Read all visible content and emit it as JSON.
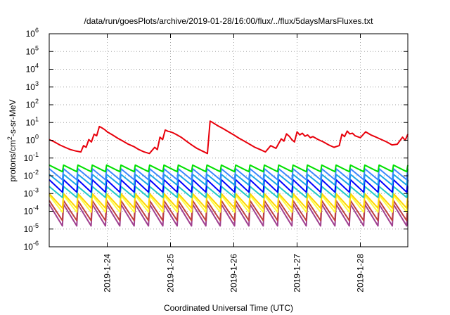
{
  "chart_data": {
    "type": "line",
    "title": "/data/run/goesPlots/archive/2019-01-28/16:00/flux/../flux/5daysMarsFluxes.txt",
    "xlabel": "Coordinated Universal Time (UTC)",
    "ylabel_prefix": "protons/cm",
    "ylabel_sup": "2",
    "ylabel_suffix": "-s-sr-MeV",
    "y_scale": "log",
    "ylim": [
      1e-06,
      1000000.0
    ],
    "xlim": [
      "2019-01-23T02:00",
      "2019-01-28T18:00"
    ],
    "grid": true,
    "x_ticks": [
      "2019-1-24",
      "2019-1-25",
      "2019-1-26",
      "2019-1-27",
      "2019-1-28"
    ],
    "y_ticks": [
      {
        "base": "10",
        "exp": "-6"
      },
      {
        "base": "10",
        "exp": "-5"
      },
      {
        "base": "10",
        "exp": "-4"
      },
      {
        "base": "10",
        "exp": "-3"
      },
      {
        "base": "10",
        "exp": "-2"
      },
      {
        "base": "10",
        "exp": "-1"
      },
      {
        "base": "10",
        "exp": "0"
      },
      {
        "base": "10",
        "exp": "1"
      },
      {
        "base": "10",
        "exp": "2"
      },
      {
        "base": "10",
        "exp": "3"
      },
      {
        "base": "10",
        "exp": "4"
      },
      {
        "base": "10",
        "exp": "5"
      },
      {
        "base": "10",
        "exp": "6"
      }
    ],
    "series": [
      {
        "color": "#e8000b",
        "x": [
          "2019-01-23T02:00",
          "2019-01-23T04:00",
          "2019-01-23T06:00",
          "2019-01-23T08:00",
          "2019-01-23T10:00",
          "2019-01-23T12:00",
          "2019-01-23T14:00",
          "2019-01-23T15:00",
          "2019-01-23T16:00",
          "2019-01-23T17:00",
          "2019-01-23T18:00",
          "2019-01-23T19:00",
          "2019-01-23T20:00",
          "2019-01-23T21:00",
          "2019-01-23T22:00",
          "2019-01-23T23:00",
          "2019-01-24T00:00",
          "2019-01-24T02:00",
          "2019-01-24T04:00",
          "2019-01-24T06:00",
          "2019-01-24T08:00",
          "2019-01-24T10:00",
          "2019-01-24T12:00",
          "2019-01-24T14:00",
          "2019-01-24T16:00",
          "2019-01-24T18:00",
          "2019-01-24T19:00",
          "2019-01-24T20:00",
          "2019-01-24T21:00",
          "2019-01-24T22:00",
          "2019-01-24T23:00",
          "2019-01-25T00:00",
          "2019-01-25T01:00",
          "2019-01-25T02:00",
          "2019-01-25T04:00",
          "2019-01-25T06:00",
          "2019-01-25T08:00",
          "2019-01-25T10:00",
          "2019-01-25T12:00",
          "2019-01-25T14:00",
          "2019-01-25T15:00",
          "2019-01-25T16:00",
          "2019-01-25T18:00",
          "2019-01-25T20:00",
          "2019-01-25T22:00",
          "2019-01-26T00:00",
          "2019-01-26T02:00",
          "2019-01-26T04:00",
          "2019-01-26T06:00",
          "2019-01-26T08:00",
          "2019-01-26T10:00",
          "2019-01-26T12:00",
          "2019-01-26T14:00",
          "2019-01-26T16:00",
          "2019-01-26T18:00",
          "2019-01-26T19:00",
          "2019-01-26T20:00",
          "2019-01-26T21:00",
          "2019-01-26T22:00",
          "2019-01-26T23:00",
          "2019-01-27T00:00",
          "2019-01-27T01:00",
          "2019-01-27T02:00",
          "2019-01-27T03:00",
          "2019-01-27T04:00",
          "2019-01-27T05:00",
          "2019-01-27T06:00",
          "2019-01-27T08:00",
          "2019-01-27T10:00",
          "2019-01-27T12:00",
          "2019-01-27T14:00",
          "2019-01-27T16:00",
          "2019-01-27T17:00",
          "2019-01-27T18:00",
          "2019-01-27T19:00",
          "2019-01-27T20:00",
          "2019-01-27T21:00",
          "2019-01-27T22:00",
          "2019-01-28T00:00",
          "2019-01-28T02:00",
          "2019-01-28T04:00",
          "2019-01-28T06:00",
          "2019-01-28T08:00",
          "2019-01-28T10:00",
          "2019-01-28T12:00",
          "2019-01-28T14:00",
          "2019-01-28T16:00",
          "2019-01-28T17:00",
          "2019-01-28T18:00"
        ],
        "y": [
          1.1,
          0.8,
          0.55,
          0.4,
          0.3,
          0.25,
          0.22,
          0.5,
          0.4,
          1.1,
          0.8,
          2.2,
          1.8,
          6.0,
          5.0,
          4.0,
          3.0,
          2.0,
          1.3,
          0.9,
          0.6,
          0.45,
          0.3,
          0.22,
          0.18,
          0.4,
          0.3,
          1.5,
          1.1,
          3.8,
          3.2,
          3.0,
          2.6,
          2.2,
          1.5,
          0.9,
          0.55,
          0.35,
          0.25,
          0.18,
          12.0,
          10.0,
          6.5,
          4.5,
          3.0,
          2.0,
          1.3,
          0.9,
          0.6,
          0.4,
          0.3,
          0.22,
          0.5,
          0.35,
          1.2,
          0.9,
          2.3,
          1.7,
          1.1,
          0.8,
          3.0,
          2.0,
          2.5,
          1.7,
          2.0,
          1.4,
          1.6,
          1.1,
          0.8,
          0.55,
          0.4,
          0.5,
          2.2,
          1.6,
          3.3,
          2.3,
          2.5,
          1.8,
          1.4,
          3.0,
          2.0,
          1.5,
          1.1,
          0.8,
          0.55,
          0.6,
          1.5,
          1.0,
          2.2
        ]
      }
    ],
    "sawtooth_series": [
      {
        "color": "#00e000",
        "peak": 0.04,
        "trough": 0.017
      },
      {
        "color": "#3a86ff",
        "peak": 0.025,
        "trough": 0.006
      },
      {
        "color": "#1aa3e8",
        "peak": 0.012,
        "trough": 0.003
      },
      {
        "color": "#0000ff",
        "peak": 0.006,
        "trough": 0.0012
      },
      {
        "color": "#20c8c8",
        "peak": 0.0025,
        "trough": 0.0006
      },
      {
        "color": "#ffd500",
        "peak": 0.001,
        "trough": 0.00015
      },
      {
        "color": "#ffff40",
        "peak": 0.0008,
        "trough": 9e-05
      },
      {
        "color": "#c04040",
        "peak": 0.0004,
        "trough": 3e-05
      },
      {
        "color": "#a04090",
        "peak": 0.00025,
        "trough": 1.5e-05
      }
    ],
    "sawtooth_x_start": "2019-01-23T02:00",
    "sawtooth_x_end": "2019-01-28T18:00",
    "sawtooth_cycles": 25
  }
}
